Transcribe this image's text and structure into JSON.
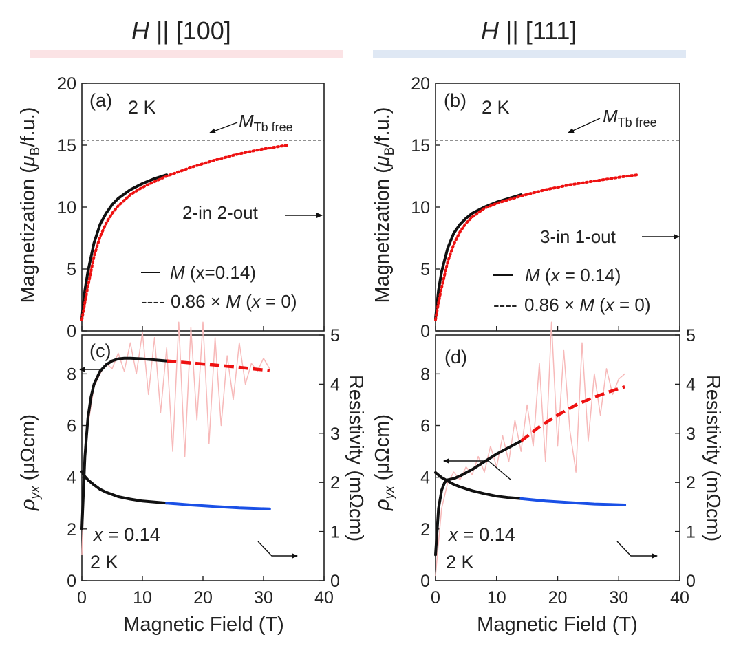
{
  "headers": [
    {
      "symbol": "H",
      "text": " || [100]",
      "bar_color": "#fbe3e5"
    },
    {
      "symbol": "H",
      "text": " || [111]",
      "bar_color": "#dfe8f4"
    }
  ],
  "colors": {
    "black": "#111111",
    "red": "#ee1111",
    "blue": "#1a50e6",
    "noise": "#f7b9b9",
    "dark_green": "#1f4f4a"
  },
  "labels": {
    "x_field": "Magnetic Field (T)",
    "magnetization_y": "Magnetization (μB/f.u.)",
    "rho_y": "ρyx (μΩcm)",
    "resistivity_y": "Resistivity (mΩcm)",
    "mag_unit": "Magnetization (",
    "mu": "μ",
    "b_sub": "B",
    "fu": "/f.u.)",
    "rho": "ρ",
    "yx": "yx",
    "rho_unit": " (μΩcm)",
    "mtb_M": "M",
    "mtb_sub": "Tb free",
    "temp": "2 K",
    "x_equals": "x",
    "x_value": " = 0.14",
    "legend_solid_M": "M",
    "legend_dash_prefix": "0.86 × ",
    "legend_dash_M": "M",
    "legend_dash_x": "x",
    "legend_dash_tail": " = 0)",
    "legend_dash_open": " (",
    "legend_dashes": "----",
    "legend_dash": "—"
  },
  "chart_data": [
    {
      "panel": "(a)",
      "type": "line",
      "title": "2 K",
      "xlabel": "",
      "ylabel": "Magnetization (μB/f.u.)",
      "xlim": [
        0,
        40
      ],
      "ylim": [
        0,
        20
      ],
      "xticks": [],
      "yticks": [
        0,
        5,
        10,
        15,
        20
      ],
      "reference_line": {
        "y": 15.4,
        "label": "M Tb free"
      },
      "annotation": "2-in 2-out",
      "legend": {
        "solid": "M (x=0.14)",
        "solid_parts": [
          " (x=0.14)"
        ],
        "dashed_parts": [
          "0.86 × ",
          "M",
          " (",
          "x",
          " = 0)"
        ]
      },
      "series": [
        {
          "name": "M (x=0.14)",
          "style": "solid",
          "color": "#111111",
          "x": [
            0,
            0.5,
            1,
            2,
            3,
            4,
            5,
            6,
            8,
            10,
            12,
            14
          ],
          "y": [
            1.0,
            3.3,
            4.8,
            7.1,
            8.6,
            9.5,
            10.2,
            10.7,
            11.4,
            11.9,
            12.3,
            12.6
          ]
        },
        {
          "name": "0.86 × M (x = 0)",
          "style": "dotted",
          "color": "#ee1111",
          "x": [
            0,
            0.5,
            1,
            2,
            3,
            4,
            5,
            6,
            8,
            10,
            14,
            18,
            22,
            26,
            30,
            34
          ],
          "y": [
            0.9,
            2.3,
            3.6,
            6.0,
            7.6,
            8.7,
            9.5,
            10.1,
            11.0,
            11.6,
            12.5,
            13.2,
            13.8,
            14.3,
            14.7,
            15.0
          ]
        }
      ]
    },
    {
      "panel": "(b)",
      "type": "line",
      "title": "2 K",
      "xlabel": "",
      "ylabel": "Magnetization (μB/f.u.)",
      "xlim": [
        0,
        40
      ],
      "ylim": [
        0,
        20
      ],
      "xticks": [],
      "yticks": [
        0,
        5,
        10,
        15,
        20
      ],
      "reference_line": {
        "y": 15.4,
        "label": "M Tb free"
      },
      "annotation": "3-in 1-out",
      "legend": {
        "solid_parts": [
          " (",
          "x",
          " = 0.14)"
        ],
        "dashed_parts": [
          "0.86 × ",
          "M",
          " (",
          "x",
          " = 0)"
        ]
      },
      "series": [
        {
          "name": "M (x = 0.14)",
          "style": "solid",
          "color": "#111111",
          "x": [
            0,
            0.5,
            1,
            2,
            3,
            4,
            5,
            6,
            8,
            10,
            12,
            14
          ],
          "y": [
            1.0,
            3.3,
            4.8,
            6.7,
            7.9,
            8.6,
            9.1,
            9.5,
            10.0,
            10.4,
            10.7,
            11.0
          ]
        },
        {
          "name": "0.86 × M (x = 0)",
          "style": "dotted",
          "color": "#ee1111",
          "x": [
            0,
            0.5,
            1,
            2,
            3,
            4,
            5,
            6,
            8,
            10,
            14,
            18,
            22,
            26,
            30,
            33
          ],
          "y": [
            0.9,
            2.3,
            3.5,
            5.6,
            7.0,
            8.0,
            8.7,
            9.2,
            9.9,
            10.3,
            10.9,
            11.4,
            11.8,
            12.1,
            12.4,
            12.6
          ]
        }
      ]
    },
    {
      "panel": "(c)",
      "type": "line",
      "title": "",
      "xlabel": "Magnetic Field (T)",
      "ylabel": "ρyx (μΩcm)",
      "y2label": "Resistivity (mΩcm)",
      "xlim": [
        0,
        40
      ],
      "ylim": [
        0,
        9.5
      ],
      "y2lim": [
        0,
        5
      ],
      "xticks": [
        0,
        10,
        20,
        30,
        40
      ],
      "yticks": [
        0,
        2,
        4,
        6,
        8
      ],
      "y2ticks": [
        0,
        1,
        2,
        3,
        4,
        5
      ],
      "texts": [
        "x = 0.14",
        "2 K"
      ],
      "series": [
        {
          "name": "ρyx fit (black)",
          "axis": "left",
          "style": "solid",
          "color": "#111111",
          "x": [
            0,
            0.5,
            1,
            1.5,
            2,
            3,
            4,
            5,
            6,
            7,
            8,
            10,
            12,
            14
          ],
          "y": [
            2.0,
            4.8,
            6.3,
            7.1,
            7.6,
            8.1,
            8.35,
            8.5,
            8.58,
            8.6,
            8.6,
            8.58,
            8.54,
            8.5
          ]
        },
        {
          "name": "ρyx extrapolated (red dashed)",
          "axis": "left",
          "style": "dashed",
          "color": "#ee1111",
          "x": [
            14,
            18,
            22,
            26,
            30,
            31
          ],
          "y": [
            8.5,
            8.42,
            8.34,
            8.25,
            8.15,
            8.12
          ]
        },
        {
          "name": "ρyx data (noisy)",
          "axis": "left",
          "style": "thin",
          "color": "#f7b9b9",
          "x": [
            0,
            0.5,
            1,
            2,
            3,
            4,
            5,
            6,
            7,
            8,
            9,
            10,
            11,
            12,
            13,
            14,
            15,
            16,
            17,
            18,
            19,
            20,
            21,
            22,
            23,
            24,
            25,
            26,
            27,
            28,
            29,
            30,
            31
          ],
          "y": [
            1.0,
            4.5,
            6.0,
            7.5,
            8.0,
            8.4,
            8.2,
            8.8,
            8.1,
            9.2,
            8.0,
            9.6,
            7.2,
            9.4,
            6.5,
            9.0,
            5.0,
            10.0,
            4.8,
            9.8,
            6.2,
            10.0,
            5.3,
            9.4,
            6.0,
            8.7,
            7.0,
            9.2,
            7.6,
            8.4,
            8.1,
            8.6,
            8.2
          ]
        },
        {
          "name": "Resistivity fit (black)",
          "axis": "right",
          "style": "solid",
          "color": "#111111",
          "x": [
            0,
            0.5,
            1,
            2,
            3,
            4,
            6,
            8,
            10,
            12,
            14
          ],
          "y": [
            2.22,
            2.12,
            2.05,
            1.95,
            1.86,
            1.8,
            1.71,
            1.66,
            1.62,
            1.6,
            1.58
          ]
        },
        {
          "name": "Resistivity extrapolated (blue)",
          "axis": "right",
          "style": "solid",
          "color": "#1a50e6",
          "x": [
            14,
            18,
            22,
            26,
            31
          ],
          "y": [
            1.58,
            1.54,
            1.51,
            1.48,
            1.46
          ]
        }
      ]
    },
    {
      "panel": "(d)",
      "type": "line",
      "title": "",
      "xlabel": "Magnetic Field (T)",
      "ylabel": "ρyx (μΩcm)",
      "y2label": "Resistivity (mΩcm)",
      "xlim": [
        0,
        40
      ],
      "ylim": [
        0,
        9.5
      ],
      "y2lim": [
        0,
        5
      ],
      "xticks": [
        0,
        10,
        20,
        30,
        40
      ],
      "yticks": [
        0,
        2,
        4,
        6,
        8
      ],
      "y2ticks": [
        0,
        1,
        2,
        3,
        4,
        5
      ],
      "texts": [
        "x = 0.14",
        "2 K"
      ],
      "series": [
        {
          "name": "ρyx fit (black)",
          "axis": "left",
          "style": "solid",
          "color": "#111111",
          "x": [
            0,
            0.5,
            1,
            1.5,
            2,
            3,
            4,
            6,
            8,
            10,
            12,
            14
          ],
          "y": [
            1.0,
            2.8,
            3.5,
            3.8,
            3.9,
            3.95,
            4.05,
            4.3,
            4.6,
            4.9,
            5.15,
            5.4
          ]
        },
        {
          "name": "ρyx extrapolated (red dashed)",
          "axis": "left",
          "style": "dashed",
          "color": "#ee1111",
          "x": [
            14,
            17,
            20,
            23,
            26,
            29,
            31
          ],
          "y": [
            5.4,
            5.95,
            6.4,
            6.8,
            7.1,
            7.35,
            7.5
          ]
        },
        {
          "name": "ρyx data (noisy)",
          "axis": "left",
          "style": "thin",
          "color": "#f7b9b9",
          "x": [
            0,
            0.5,
            1,
            2,
            3,
            4,
            5,
            6,
            7,
            8,
            9,
            10,
            11,
            12,
            13,
            14,
            15,
            16,
            17,
            18,
            19,
            20,
            21,
            22,
            23,
            24,
            25,
            26,
            27,
            28,
            29,
            30,
            31
          ],
          "y": [
            0.2,
            1.5,
            2.8,
            3.8,
            4.2,
            3.9,
            4.4,
            4.1,
            4.8,
            4.2,
            5.2,
            4.4,
            5.6,
            4.6,
            6.2,
            5.0,
            6.8,
            5.2,
            8.4,
            4.6,
            10.0,
            5.2,
            8.9,
            5.8,
            4.2,
            9.2,
            5.4,
            8.0,
            6.4,
            8.2,
            7.2,
            7.8,
            8.0
          ]
        },
        {
          "name": "Resistivity fit (black)",
          "axis": "right",
          "style": "solid",
          "color": "#111111",
          "x": [
            0,
            0.5,
            1,
            2,
            3,
            4,
            6,
            8,
            10,
            12,
            14
          ],
          "y": [
            2.2,
            2.15,
            2.1,
            2.03,
            1.96,
            1.91,
            1.83,
            1.77,
            1.72,
            1.69,
            1.67
          ]
        },
        {
          "name": "Resistivity extrapolated (blue)",
          "axis": "right",
          "style": "solid",
          "color": "#1a50e6",
          "x": [
            14,
            18,
            22,
            26,
            31
          ],
          "y": [
            1.67,
            1.62,
            1.59,
            1.56,
            1.54
          ]
        }
      ]
    }
  ]
}
